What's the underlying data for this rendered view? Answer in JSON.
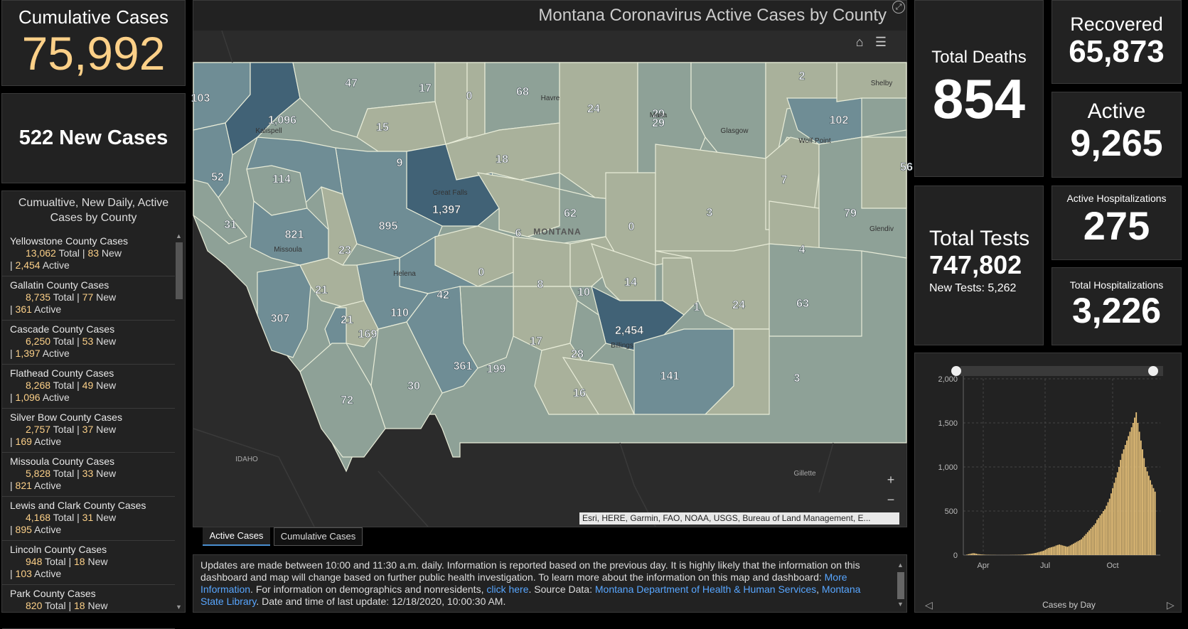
{
  "cumulative": {
    "label": "Cumulative Cases",
    "value": "75,992"
  },
  "new_cases": {
    "label": "522 New Cases"
  },
  "county_list": {
    "header": "Cumualtive, New Daily, Active Cases by County",
    "items": [
      {
        "name": "Yellowstone County Cases",
        "total": "13,062",
        "new": "83",
        "active": "2,454"
      },
      {
        "name": "Gallatin County Cases",
        "total": "8,735",
        "new": "77",
        "active": "361"
      },
      {
        "name": "Cascade County Cases",
        "total": "6,250",
        "new": "53",
        "active": "1,397"
      },
      {
        "name": "Flathead County Cases",
        "total": "8,268",
        "new": "49",
        "active": "1,096"
      },
      {
        "name": "Silver Bow County Cases",
        "total": "2,757",
        "new": "37",
        "active": "169"
      },
      {
        "name": "Missoula County Cases",
        "total": "5,828",
        "new": "33",
        "active": "821"
      },
      {
        "name": "Lewis and Clark County Cases",
        "total": "4,168",
        "new": "31",
        "active": "895"
      },
      {
        "name": "Lincoln County Cases",
        "total": "948",
        "new": "18",
        "active": "103"
      },
      {
        "name": "Park County Cases",
        "total": "820",
        "new": "18",
        "active": ""
      }
    ],
    "total_word": "Total",
    "new_word": "New",
    "active_word": "Active"
  },
  "map": {
    "title": "Montana Coronavirus Active Cases by County",
    "state_label": "MONTANA",
    "attribution": "Esri, HERE, Garmin, FAO, NOAA, USGS, Bureau of Land Management, E...",
    "zoom_in": "+",
    "zoom_out": "−",
    "county_values": [
      "103",
      "47",
      "17",
      "0",
      "68",
      "24",
      "29",
      "2",
      "1,096",
      "15",
      "29",
      "102",
      "52",
      "114",
      "9",
      "18",
      "56",
      "7",
      "31",
      "821",
      "895",
      "1,397",
      "6",
      "62",
      "0",
      "3",
      "79",
      "23",
      "4",
      "21",
      "0",
      "8",
      "10",
      "14",
      "42",
      "1",
      "24",
      "63",
      "110",
      "307",
      "21",
      "169",
      "2,454",
      "17",
      "28",
      "361",
      "199",
      "141",
      "3",
      "30",
      "72",
      "16"
    ],
    "place_labels": [
      "Kalispell",
      "Havre",
      "Malta",
      "Glasgow",
      "Wolf Point",
      "Great Falls",
      "Missoula",
      "Helena",
      "Billings",
      "Glendiv",
      "Shelby",
      "IDAHO",
      "Gillette"
    ],
    "colors": {
      "c0": "#a9b19b",
      "c1": "#8ea197",
      "c2": "#6f8d95",
      "c3": "#58798a",
      "c4": "#416276"
    }
  },
  "tabs": {
    "active": "Active Cases",
    "cumulative": "Cumulative Cases"
  },
  "note": {
    "t1": "Updates are made between 10:00 and 11:30 a.m. daily. Information is reported based on the previous day. It is highly likely that the information on this dashboard and map will change based on further public health investigation. To learn more about the information on this map and dashboard: ",
    "link1": "More Information",
    "t2": ". For information on demographics and nonresidents, ",
    "link2": "click here",
    "t3": ". Source Data: ",
    "link3": "Montana Department of Health & Human Services",
    "t4": ", ",
    "link4": "Montana State Library",
    "t5": ". Date and time of last update: 12/18/2020, 10:00:30 AM."
  },
  "deaths": {
    "label": "Total Deaths",
    "value": "854"
  },
  "recovered": {
    "label": "Recovered",
    "value": "65,873"
  },
  "active": {
    "label": "Active",
    "value": "9,265"
  },
  "tests": {
    "label": "Total Tests",
    "value": "747,802",
    "sub": "New Tests: 5,262"
  },
  "active_hosp": {
    "label": "Active Hospitalizations",
    "value": "275"
  },
  "total_hosp": {
    "label": "Total Hospitalizations",
    "value": "3,226"
  },
  "chart_data": {
    "type": "bar",
    "xlabel": "Cases by Day",
    "ylim": [
      0,
      2000
    ],
    "yticks": [
      "2,000",
      "1,500",
      "1,000",
      "500",
      "0"
    ],
    "xticks": [
      "Apr",
      "Jul",
      "Oct"
    ],
    "bar_color": "#e8c27a",
    "values": [
      5,
      10,
      14,
      18,
      22,
      20,
      16,
      12,
      10,
      8,
      6,
      5,
      4,
      3,
      3,
      2,
      2,
      2,
      2,
      1,
      1,
      1,
      1,
      1,
      1,
      1,
      1,
      1,
      2,
      2,
      2,
      3,
      3,
      4,
      4,
      5,
      6,
      8,
      10,
      12,
      14,
      16,
      18,
      22,
      25,
      30,
      35,
      40,
      45,
      50,
      60,
      70,
      80,
      85,
      90,
      95,
      100,
      110,
      115,
      120,
      115,
      110,
      105,
      100,
      95,
      100,
      110,
      120,
      130,
      140,
      150,
      160,
      170,
      180,
      200,
      220,
      240,
      260,
      280,
      300,
      320,
      340,
      360,
      400,
      420,
      450,
      470,
      500,
      520,
      560,
      600,
      640,
      700,
      760,
      820,
      880,
      940,
      1000,
      1080,
      1150,
      1200,
      1250,
      1300,
      1350,
      1400,
      1450,
      1500,
      1560,
      1620,
      1500,
      1400,
      1300,
      1200,
      1100,
      1000,
      950,
      900,
      850,
      800,
      760,
      720
    ]
  }
}
